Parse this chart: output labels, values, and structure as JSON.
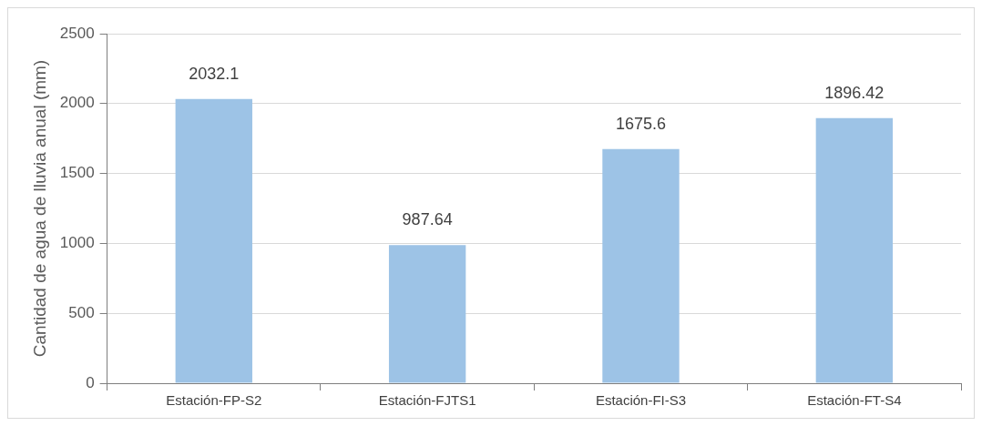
{
  "chart_data": {
    "type": "bar",
    "ylabel": "Cantidad de agua de lluvia anual (mm)",
    "categories": [
      "Estación-FP-S2",
      "Estación-FJTS1",
      "Estación-FI-S3",
      "Estación-FT-S4"
    ],
    "values": [
      2032.1,
      987.64,
      1675.6,
      1896.42
    ],
    "color": "#9dc3e6",
    "ylim": [
      0,
      2500
    ],
    "yticks": [
      0,
      500,
      1000,
      1500,
      2000,
      2500
    ],
    "grid": "y",
    "data_labels": true,
    "legend": false
  }
}
